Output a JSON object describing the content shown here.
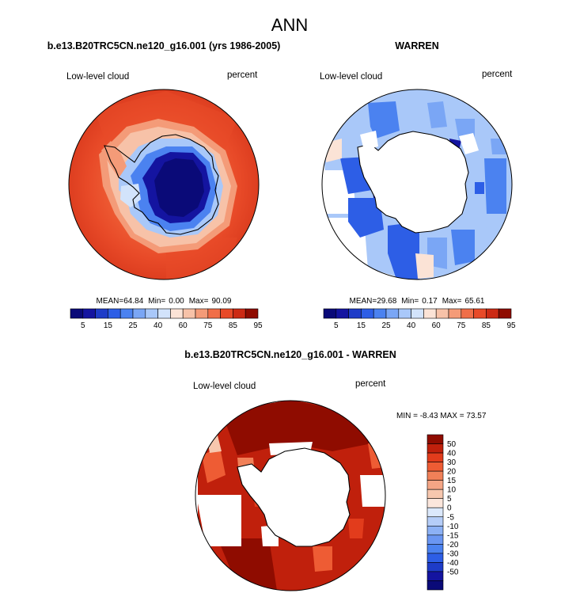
{
  "title": "ANN",
  "colors": {
    "land_outline": "#000000",
    "ocean_missing": "#ffffff",
    "abs_palette": [
      "#0a0a78",
      "#1414a0",
      "#1e3cc8",
      "#2d5ee6",
      "#4b82f0",
      "#7aa6f5",
      "#a9c8f9",
      "#d2e3fb",
      "#fbe3d6",
      "#f7c2a8",
      "#f49b78",
      "#f06e48",
      "#e84a28",
      "#cc2a14",
      "#8f0c00"
    ],
    "diff_palette": [
      "#0a0a78",
      "#1414a0",
      "#1e3cc8",
      "#2d5ee6",
      "#4b82f0",
      "#6a96f2",
      "#8cb1f5",
      "#b5cdf8",
      "#dbe8fb",
      "#fbe6dc",
      "#f7c7ae",
      "#f4a585",
      "#f18058",
      "#ee5c34",
      "#e23c1c",
      "#c0200c",
      "#8f0c00"
    ]
  },
  "chart_data": [
    {
      "type": "heatmap",
      "projection": "south polar stereographic",
      "title": "b.e13.B20TRC5CN.ne120_g16.001 (yrs 1986-2005)",
      "left_label": "Low-level cloud",
      "right_label": "percent",
      "stats": {
        "mean_label": "MEAN=",
        "mean": "64.84",
        "min_label": "Min=",
        "min": "0.00",
        "max_label": "Max=",
        "max": "90.09"
      },
      "colorbar": {
        "orientation": "horizontal",
        "levels": [
          5,
          10,
          15,
          20,
          25,
          30,
          40,
          50,
          60,
          65,
          75,
          80,
          85,
          90
        ],
        "tick_labels": [
          "5",
          "15",
          "25",
          "40",
          "60",
          "75",
          "85",
          "95"
        ]
      }
    },
    {
      "type": "heatmap",
      "projection": "south polar stereographic",
      "title": "WARREN",
      "left_label": "Low-level cloud",
      "right_label": "percent",
      "stats": {
        "mean_label": "MEAN=",
        "mean": "29.68",
        "min_label": "Min=",
        "min": "0.17",
        "max_label": "Max=",
        "max": "65.61"
      },
      "colorbar": {
        "orientation": "horizontal",
        "levels": [
          5,
          10,
          15,
          20,
          25,
          30,
          40,
          50,
          60,
          65,
          75,
          80,
          85,
          90
        ],
        "tick_labels": [
          "5",
          "15",
          "25",
          "40",
          "60",
          "75",
          "85",
          "95"
        ]
      }
    },
    {
      "type": "heatmap",
      "projection": "south polar stereographic",
      "title": "b.e13.B20TRC5CN.ne120_g16.001 - WARREN",
      "left_label": "Low-level cloud",
      "right_label": "percent",
      "stats": {
        "text": "MIN =  -8.43 MAX =  73.57"
      },
      "colorbar": {
        "orientation": "vertical",
        "tick_labels": [
          "50",
          "40",
          "30",
          "20",
          "15",
          "10",
          "5",
          "0",
          "-5",
          "-10",
          "-15",
          "-20",
          "-30",
          "-40",
          "-50"
        ]
      }
    }
  ]
}
